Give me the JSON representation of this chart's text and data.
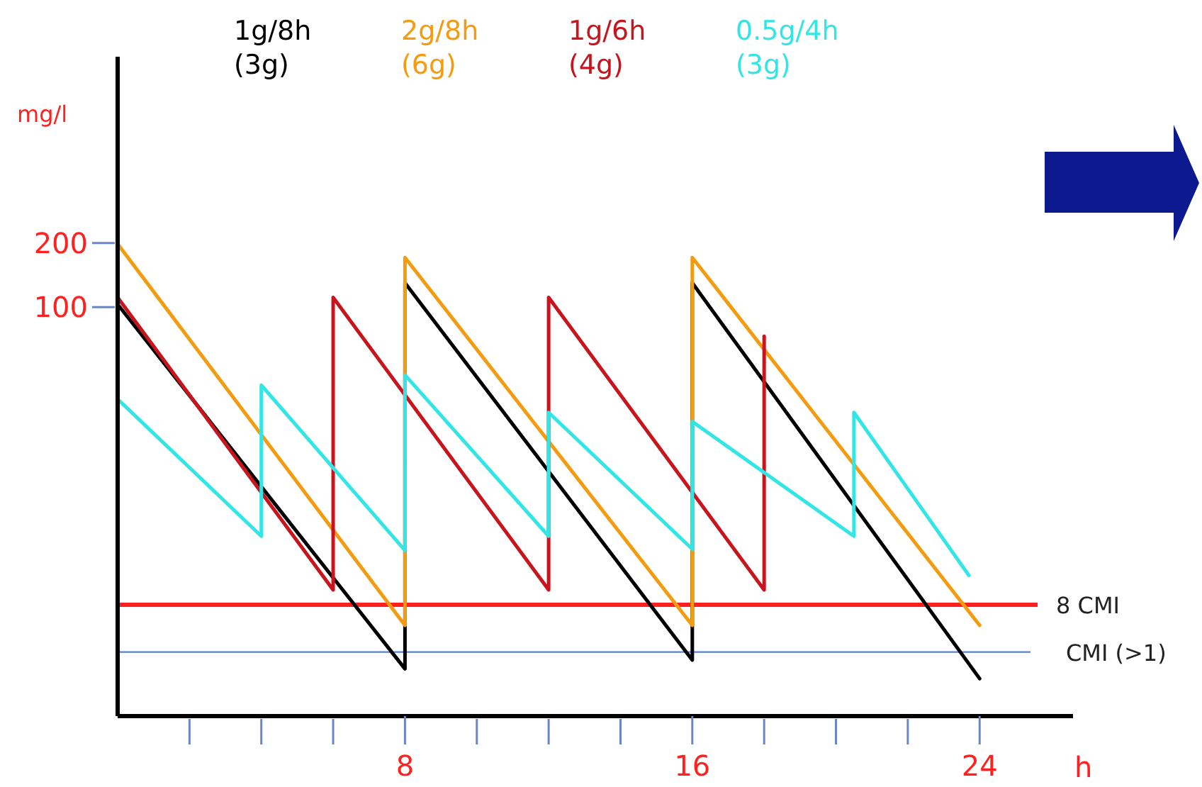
{
  "chart_data": {
    "type": "line",
    "ylabel": "mg/l",
    "xlabel": "h",
    "log": true,
    "grid": false,
    "legend": "top",
    "marker": "none",
    "line_style": "solid",
    "xlim": [
      0,
      26.6
    ],
    "xticks": [
      8,
      16,
      24
    ],
    "ylim": [
      1.2,
      1500
    ],
    "yticks": [
      100,
      200
    ],
    "series": [
      {
        "name": "1g/8h\n(3g)",
        "color": "#000000",
        "x": [
          0,
          8,
          8,
          16,
          16,
          24
        ],
        "values": [
          103,
          2.0,
          130,
          2.2,
          130,
          1.8
        ]
      },
      {
        "name": "2g/8h\n(6g)",
        "color": "#f39c12",
        "x": [
          0,
          8,
          8,
          16,
          16,
          24
        ],
        "values": [
          198,
          3.2,
          171,
          3.2,
          171,
          3.2
        ]
      },
      {
        "name": "1g/6h\n(4g)",
        "color": "#c8141c",
        "x": [
          0,
          6,
          6,
          12,
          12,
          18,
          18
        ],
        "values": [
          111,
          4.7,
          111,
          4.7,
          111,
          4.7,
          73
        ]
      },
      {
        "name": "0.5g/4h\n(3g)",
        "color": "#33e5e5",
        "x": [
          0,
          4,
          4,
          8,
          8,
          12,
          12,
          16,
          16,
          20.5,
          20.5,
          23.7
        ],
        "values": [
          37,
          8.4,
          43,
          7.2,
          48,
          8.4,
          32,
          7.3,
          29,
          8.4,
          32,
          5.5
        ]
      }
    ],
    "ref_lines": [
      {
        "axis": "y",
        "value": 4.0,
        "label": "8 CMI",
        "color": "#ff2020"
      },
      {
        "axis": "y",
        "value": 2.4,
        "label": "CMI (>1)",
        "color": "#5b7fd0"
      }
    ]
  }
}
